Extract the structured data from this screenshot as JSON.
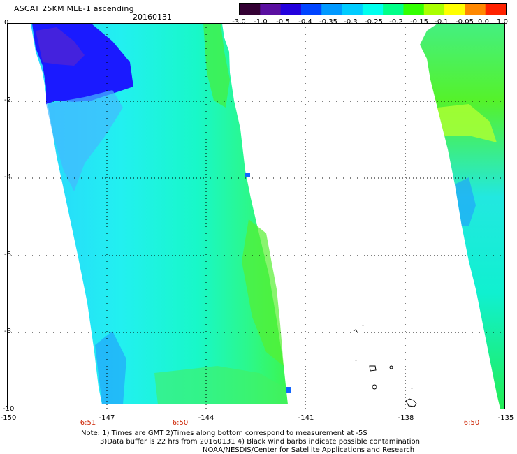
{
  "header": {
    "title": "ASCAT 25KM MLE-1 ascending",
    "date": "20160131"
  },
  "colorbar": {
    "labels": [
      "-3.0",
      "-1.0",
      "-0.5",
      "-0.4",
      "-0.35",
      "-0.3",
      "-0.25",
      "-0.2",
      "-0.15",
      "-0.1",
      "-0.05",
      "0.0",
      "1.0"
    ],
    "colors": [
      "#330033",
      "#5a0fa0",
      "#2200dd",
      "#0044ff",
      "#0099ff",
      "#00ccff",
      "#00ffee",
      "#00ff88",
      "#33ff00",
      "#aaff00",
      "#ffff00",
      "#ff8800",
      "#ff2200"
    ]
  },
  "axes": {
    "y_labels": [
      "0",
      "-2",
      "-4",
      "-6",
      "-8",
      "-10"
    ],
    "x_labels": [
      "-150",
      "-147",
      "-144",
      "-141",
      "-138",
      "-135"
    ]
  },
  "time_labels": [
    "6:51",
    "6:50",
    "6:50"
  ],
  "notes": {
    "line1": "Note: 1) Times are GMT 2)Times along bottom correspond to measurement at -5S",
    "line2": "3)Data buffer is 22 hrs from 20160131 4) Black wind barbs indicate possible contamination",
    "line3": "NOAA/NESDIS/Center for Satellite Applications and Research"
  },
  "legend_colors": {
    "deep_blue": "#1a1aff",
    "light_blue": "#44c8ff",
    "cyan": "#00ffff",
    "green": "#22ff44",
    "yellow_green": "#aaff33"
  }
}
